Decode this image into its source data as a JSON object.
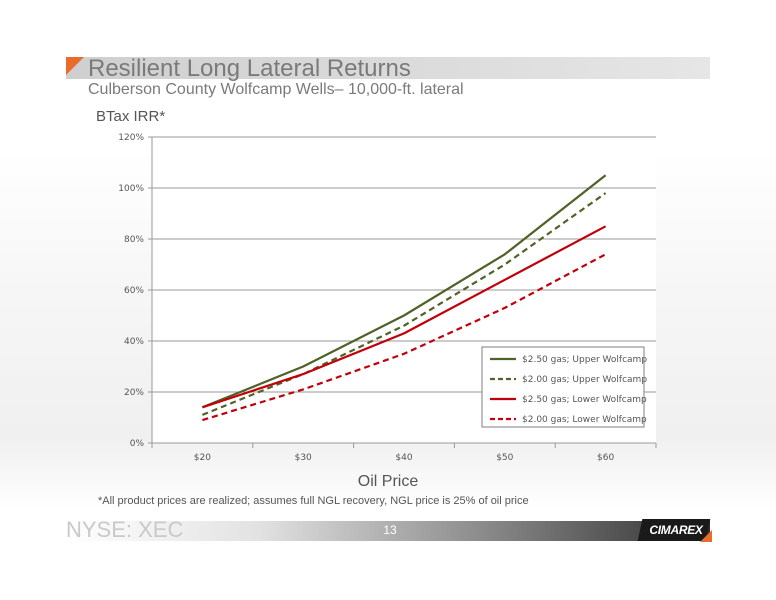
{
  "slide": {
    "title": "Resilient Long Lateral Returns",
    "subtitle": "Culberson County Wolfcamp Wells– 10,000-ft. lateral",
    "footnote": "*All product prices are realized; assumes full NGL recovery, NGL price is 25% of oil price",
    "ticker": "NYSE: XEC",
    "page_number": "13",
    "logo_text": "CIMAREX"
  },
  "chart_data": {
    "type": "line",
    "title": "",
    "ylabel": "BTax IRR*",
    "xlabel": "Oil Price",
    "categories": [
      "$20",
      "$30",
      "$40",
      "$50",
      "$60"
    ],
    "y_ticks": [
      "0%",
      "20%",
      "40%",
      "60%",
      "80%",
      "100%",
      "120%"
    ],
    "ylim": [
      0,
      120
    ],
    "grid": "horizontal",
    "legend_position": "bottom-right",
    "series": [
      {
        "name": "$2.50 gas; Upper Wolfcamp",
        "values": [
          14,
          30,
          50,
          74,
          105
        ],
        "color": "#4f6228",
        "dash": "solid"
      },
      {
        "name": "$2.00 gas; Upper Wolfcamp",
        "values": [
          11,
          27,
          46,
          70,
          98
        ],
        "color": "#4f6228",
        "dash": "dashed"
      },
      {
        "name": "$2.50 gas; Lower Wolfcamp",
        "values": [
          14,
          27,
          43,
          64,
          85
        ],
        "color": "#c0000b",
        "dash": "solid"
      },
      {
        "name": "$2.00 gas; Lower Wolfcamp",
        "values": [
          9,
          21,
          35,
          53,
          74
        ],
        "color": "#c0000b",
        "dash": "dashed"
      }
    ]
  }
}
